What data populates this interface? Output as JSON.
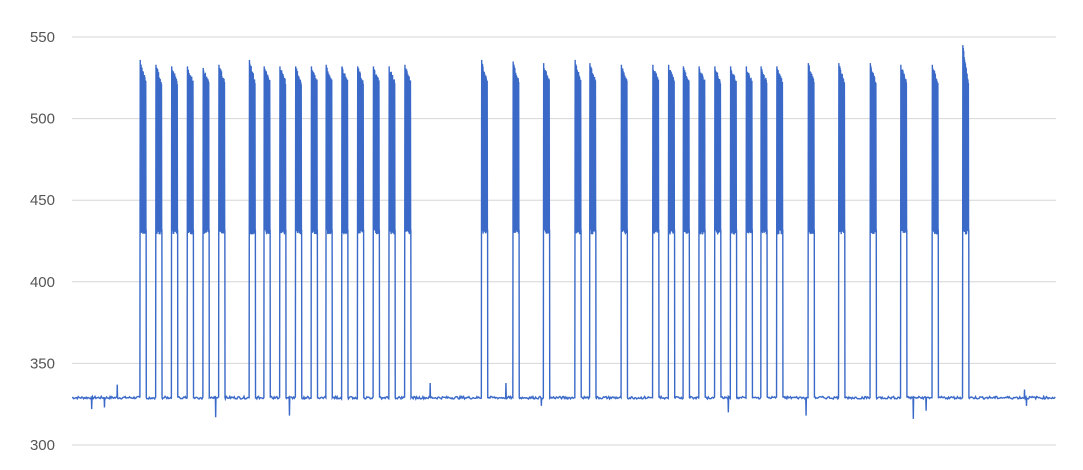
{
  "chart_data": {
    "type": "line",
    "title": "",
    "xlabel": "",
    "ylabel": "",
    "ylim": [
      300,
      550
    ],
    "yticks": [
      300,
      350,
      400,
      450,
      500,
      550
    ],
    "x_range": [
      0,
      1000
    ],
    "grid": true,
    "legend": "none",
    "baseline_value": 329,
    "pulse_low": 432,
    "pulse_high": 532,
    "series": [
      {
        "color": "#3a69c8",
        "pulses": [
          {
            "x": 69,
            "peak": 536
          },
          {
            "x": 85,
            "peak": 533
          },
          {
            "x": 101,
            "peak": 532
          },
          {
            "x": 117,
            "peak": 532
          },
          {
            "x": 133,
            "peak": 531
          },
          {
            "x": 149,
            "peak": 533
          },
          {
            "x": 180,
            "peak": 536
          },
          {
            "x": 195,
            "peak": 532
          },
          {
            "x": 211,
            "peak": 532
          },
          {
            "x": 227,
            "peak": 532
          },
          {
            "x": 243,
            "peak": 532
          },
          {
            "x": 258,
            "peak": 533
          },
          {
            "x": 274,
            "peak": 532
          },
          {
            "x": 290,
            "peak": 532
          },
          {
            "x": 306,
            "peak": 532
          },
          {
            "x": 322,
            "peak": 532
          },
          {
            "x": 338,
            "peak": 533
          },
          {
            "x": 416,
            "peak": 536
          },
          {
            "x": 448,
            "peak": 535
          },
          {
            "x": 479,
            "peak": 534
          },
          {
            "x": 511,
            "peak": 536
          },
          {
            "x": 526,
            "peak": 534
          },
          {
            "x": 558,
            "peak": 533
          },
          {
            "x": 590,
            "peak": 533
          },
          {
            "x": 606,
            "peak": 533
          },
          {
            "x": 621,
            "peak": 532
          },
          {
            "x": 637,
            "peak": 532
          },
          {
            "x": 653,
            "peak": 532
          },
          {
            "x": 669,
            "peak": 532
          },
          {
            "x": 685,
            "peak": 532
          },
          {
            "x": 700,
            "peak": 532
          },
          {
            "x": 716,
            "peak": 532
          },
          {
            "x": 748,
            "peak": 534
          },
          {
            "x": 779,
            "peak": 534
          },
          {
            "x": 811,
            "peak": 534
          },
          {
            "x": 842,
            "peak": 533
          },
          {
            "x": 874,
            "peak": 533
          },
          {
            "x": 905,
            "peak": 545
          }
        ],
        "spikes": [
          {
            "x": 20,
            "value": 322
          },
          {
            "x": 33,
            "value": 323
          },
          {
            "x": 46,
            "value": 337
          },
          {
            "x": 146,
            "value": 317
          },
          {
            "x": 221,
            "value": 318
          },
          {
            "x": 364,
            "value": 338
          },
          {
            "x": 441,
            "value": 338
          },
          {
            "x": 477,
            "value": 324
          },
          {
            "x": 667,
            "value": 320
          },
          {
            "x": 746,
            "value": 318
          },
          {
            "x": 855,
            "value": 316
          },
          {
            "x": 868,
            "value": 321
          },
          {
            "x": 968,
            "value": 334
          },
          {
            "x": 970,
            "value": 324
          }
        ]
      }
    ]
  }
}
